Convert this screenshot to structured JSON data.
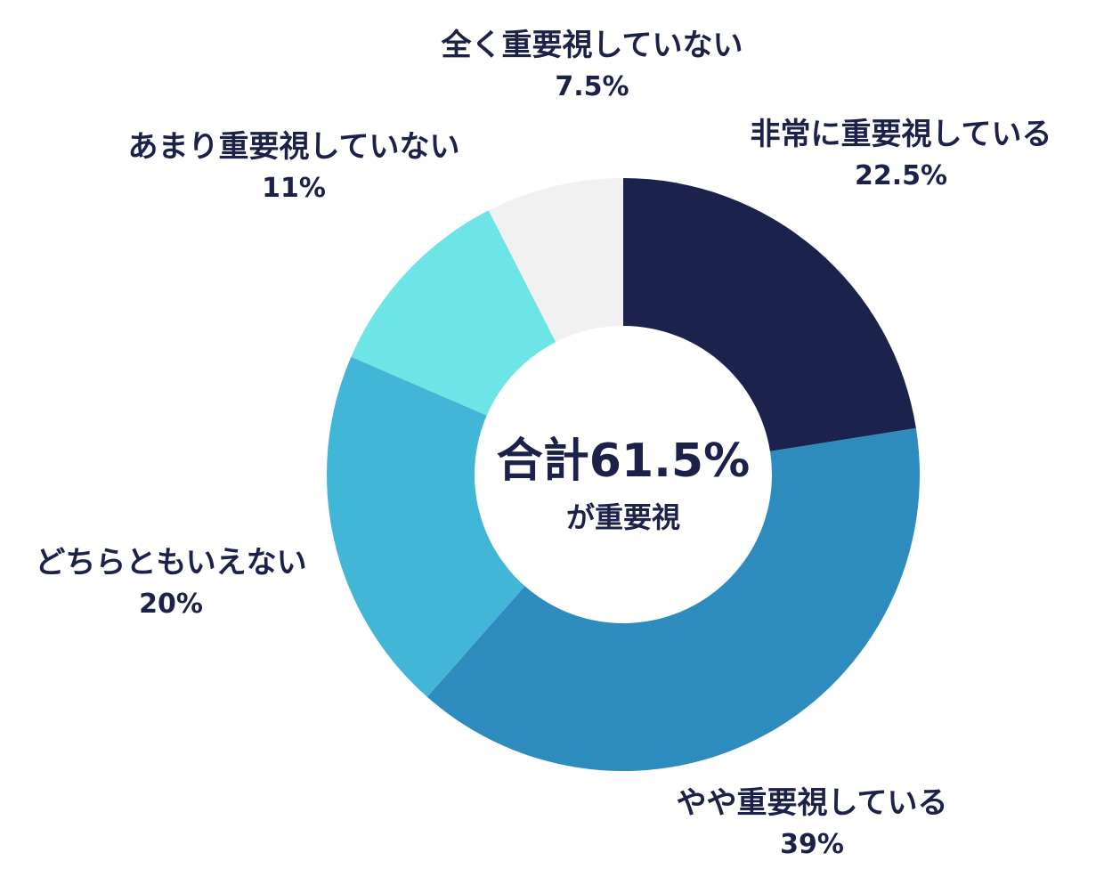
{
  "chart_data": {
    "type": "pie",
    "donut": true,
    "center_text": {
      "main": "合計61.5%",
      "sub": "が重要視"
    },
    "slices": [
      {
        "label": "非常に重要視している",
        "value": 22.5,
        "value_label": "22.5%",
        "color": "#1b224b"
      },
      {
        "label": "やや重要視している",
        "value": 39,
        "value_label": "39%",
        "color": "#2e8bbd"
      },
      {
        "label": "どちらともいえない",
        "value": 20,
        "value_label": "20%",
        "color": "#42b6d6"
      },
      {
        "label": "あまり重要視していない",
        "value": 11,
        "value_label": "11%",
        "color": "#6de4e6"
      },
      {
        "label": "全く重要視していない",
        "value": 7.5,
        "value_label": "7.5%",
        "color": "#f1f1f2"
      }
    ]
  }
}
